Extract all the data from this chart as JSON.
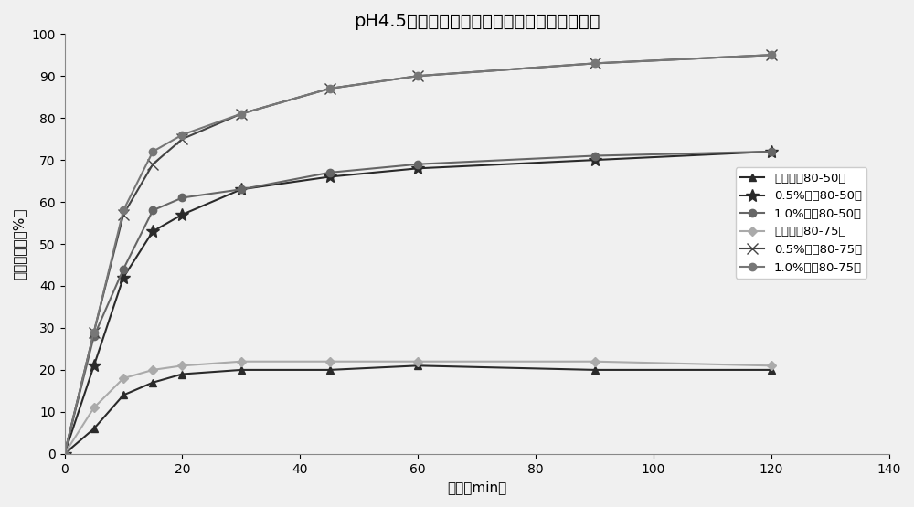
{
  "title": "pH4.5醋酸盐介质不同吐温添加量与转速的选择",
  "xlabel": "时间（min）",
  "ylabel": "累积溶出度（%）",
  "xlim": [
    0,
    140
  ],
  "ylim": [
    0,
    100
  ],
  "xticks": [
    0,
    20,
    40,
    60,
    80,
    100,
    120,
    140
  ],
  "yticks": [
    0,
    10,
    20,
    30,
    40,
    50,
    60,
    70,
    80,
    90,
    100
  ],
  "series": [
    {
      "label": "未加吐温80-50转",
      "x": [
        0,
        5,
        10,
        15,
        20,
        30,
        45,
        60,
        90,
        120
      ],
      "y": [
        0,
        6,
        14,
        17,
        19,
        20,
        20,
        21,
        20,
        20
      ],
      "color": "#2a2a2a",
      "marker": "^",
      "markersize": 6,
      "linewidth": 1.5,
      "markerfacecolor": "#2a2a2a"
    },
    {
      "label": "0.5%吐温80-50转",
      "x": [
        0,
        5,
        10,
        15,
        20,
        30,
        45,
        60,
        90,
        120
      ],
      "y": [
        0,
        21,
        42,
        53,
        57,
        63,
        66,
        68,
        70,
        72
      ],
      "color": "#2a2a2a",
      "marker": "*",
      "markersize": 10,
      "linewidth": 1.5,
      "markerfacecolor": "#2a2a2a"
    },
    {
      "label": "1.0%吐温80-50转",
      "x": [
        0,
        5,
        10,
        15,
        20,
        30,
        45,
        60,
        90,
        120
      ],
      "y": [
        0,
        28,
        44,
        58,
        61,
        63,
        67,
        69,
        71,
        72
      ],
      "color": "#666666",
      "marker": "o",
      "markersize": 6,
      "linewidth": 1.5,
      "markerfacecolor": "#666666"
    },
    {
      "label": "未加吐温80-75转",
      "x": [
        0,
        5,
        10,
        15,
        20,
        30,
        45,
        60,
        90,
        120
      ],
      "y": [
        0,
        11,
        18,
        20,
        21,
        22,
        22,
        22,
        22,
        21
      ],
      "color": "#aaaaaa",
      "marker": "D",
      "markersize": 5,
      "linewidth": 1.5,
      "markerfacecolor": "#aaaaaa"
    },
    {
      "label": "0.5%吐温80-75转",
      "x": [
        0,
        5,
        10,
        15,
        20,
        30,
        45,
        60,
        90,
        120
      ],
      "y": [
        0,
        29,
        57,
        69,
        75,
        81,
        87,
        90,
        93,
        95
      ],
      "color": "#444444",
      "marker": "x",
      "markersize": 9,
      "linewidth": 1.5,
      "markerfacecolor": "#444444"
    },
    {
      "label": "1.0%吐温80-75转",
      "x": [
        0,
        5,
        10,
        15,
        20,
        30,
        45,
        60,
        90,
        120
      ],
      "y": [
        0,
        29,
        58,
        72,
        76,
        81,
        87,
        90,
        93,
        95
      ],
      "color": "#777777",
      "marker": "o",
      "markersize": 6,
      "linewidth": 1.5,
      "markerfacecolor": "#777777"
    }
  ],
  "background_color": "#f0f0f0",
  "plot_bg_color": "#f0f0f0",
  "title_fontsize": 14,
  "axis_label_fontsize": 11,
  "tick_fontsize": 10,
  "legend_fontsize": 9.5
}
